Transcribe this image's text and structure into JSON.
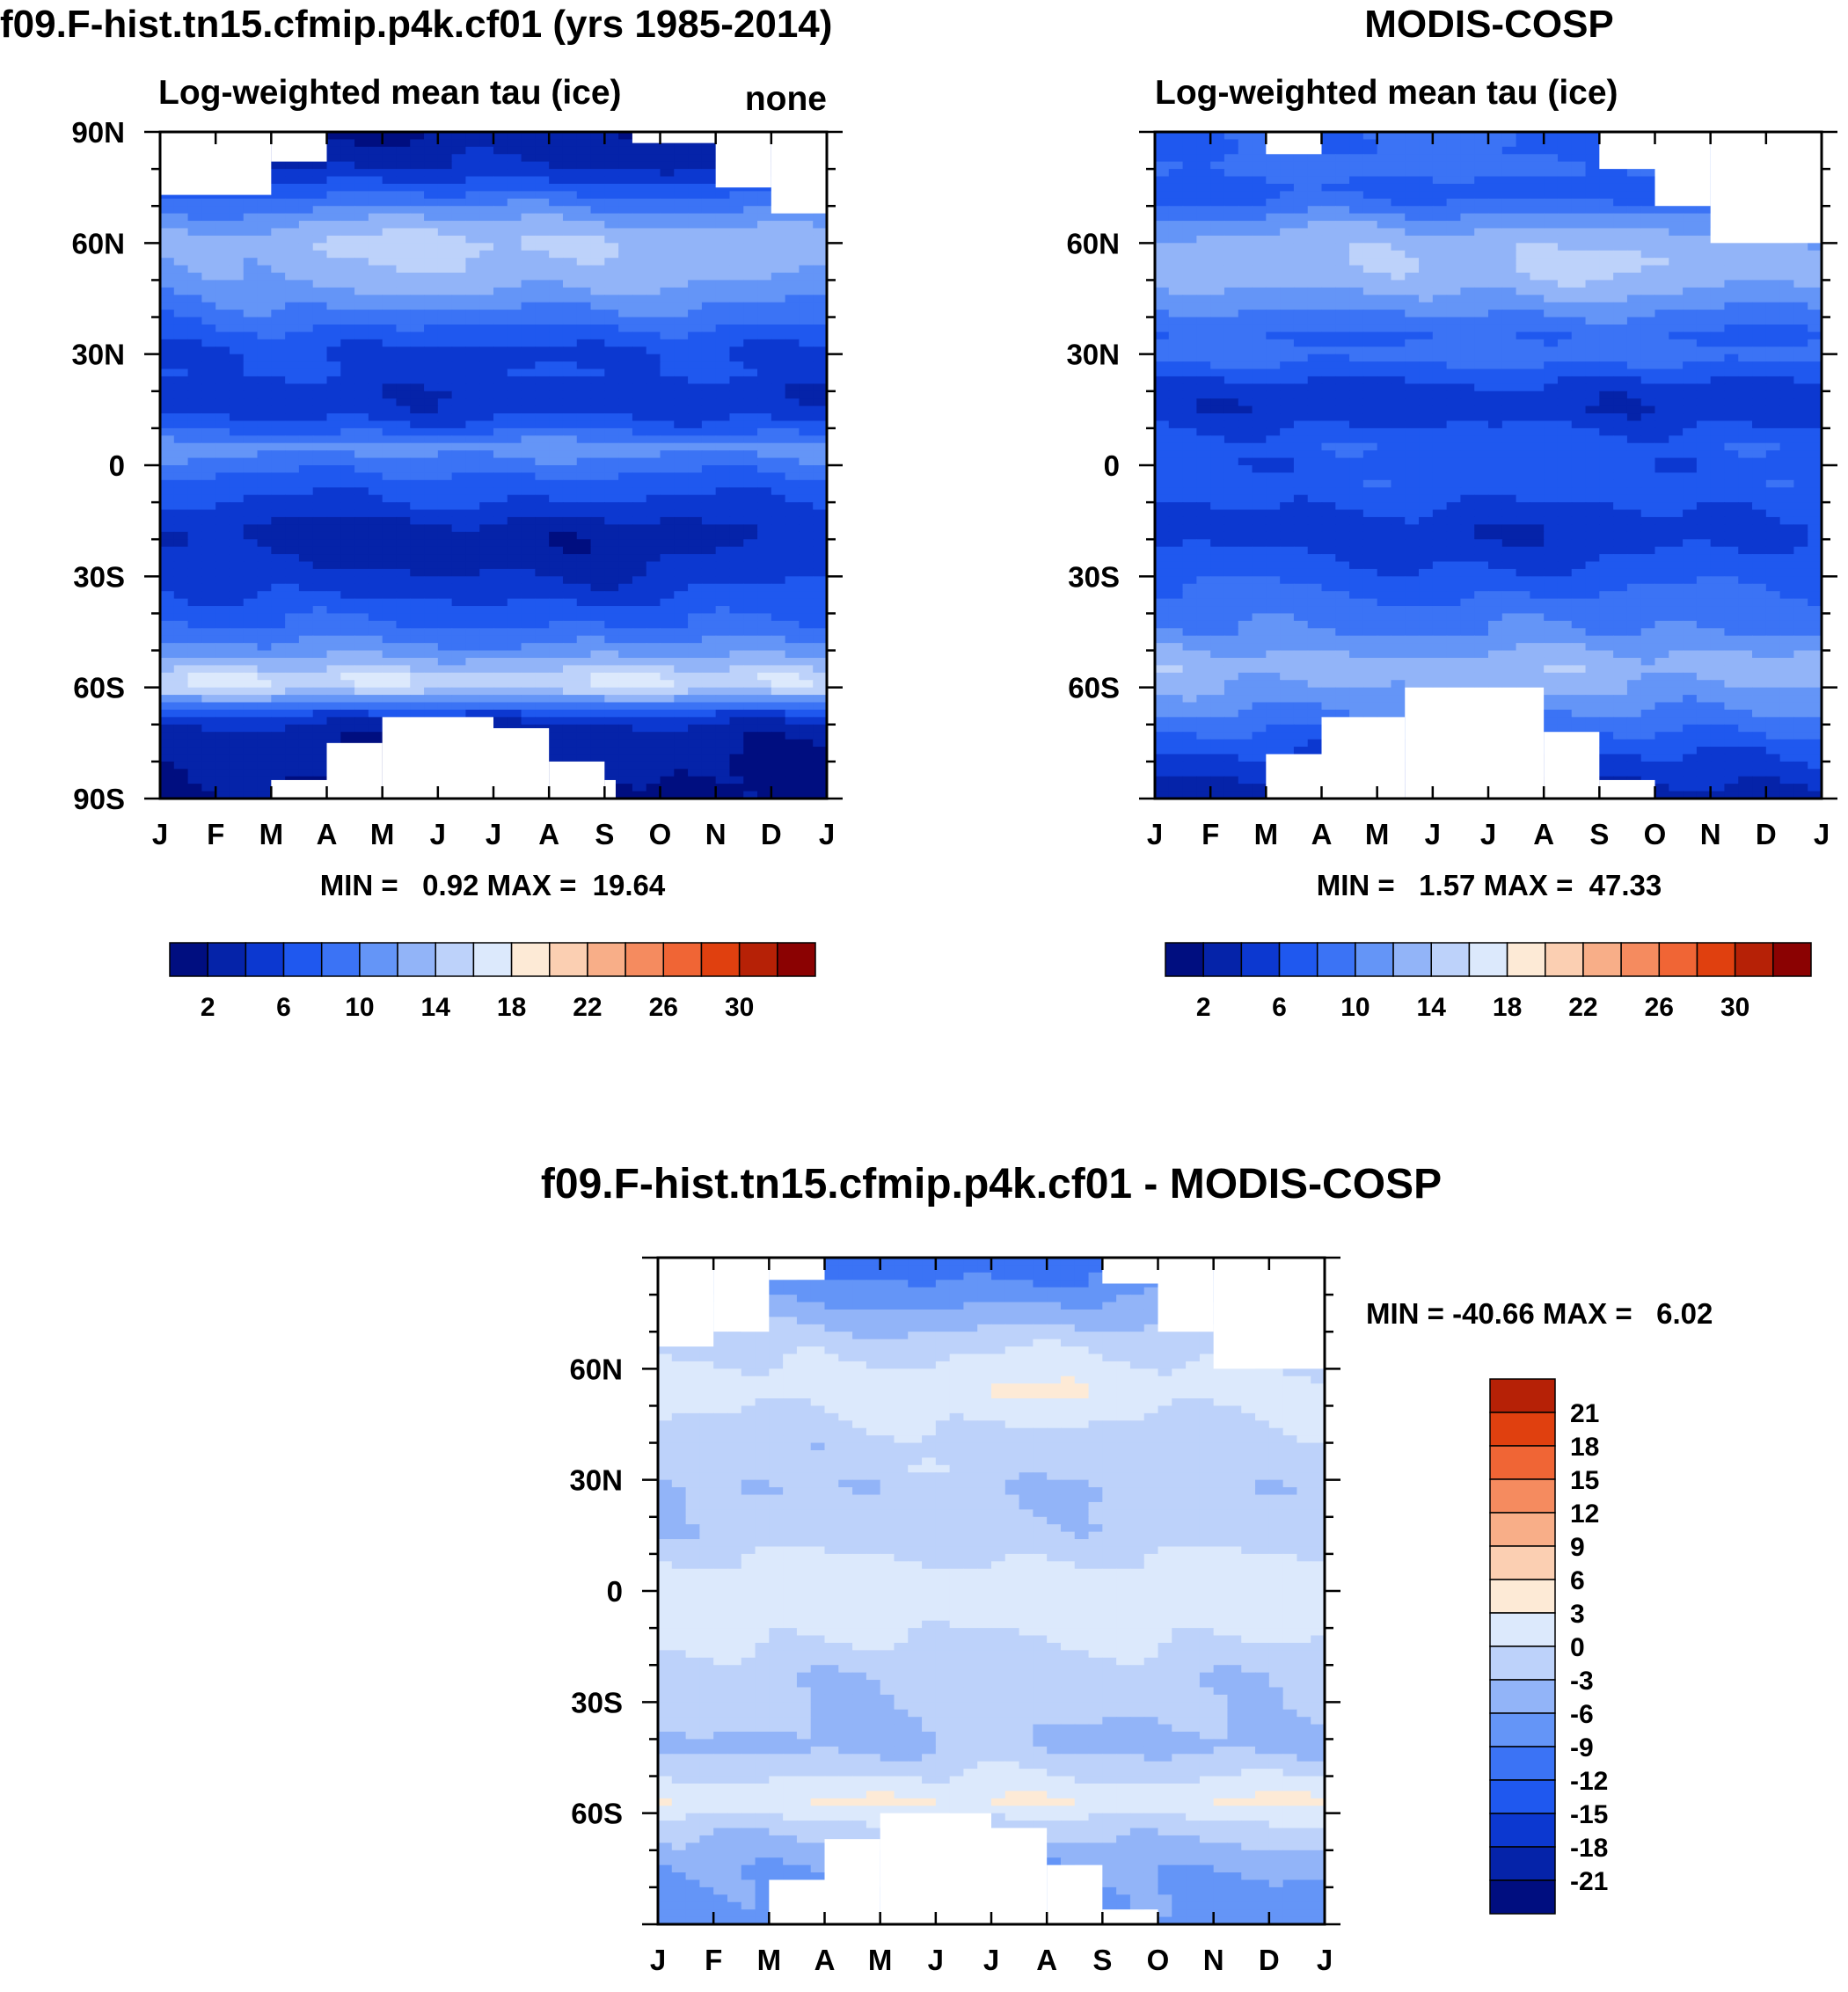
{
  "chart_data": [
    {
      "type": "heatmap",
      "panel": "model",
      "title": "f09.F-hist.tn15.cfmip.p4k.cf01 (yrs 1985-2014)",
      "subtitle": "Log-weighted mean tau (ice)",
      "right_label": "none",
      "x_ticks": [
        "J",
        "F",
        "M",
        "A",
        "M",
        "J",
        "J",
        "A",
        "S",
        "O",
        "N",
        "D",
        "J"
      ],
      "y_ticks": [
        "90N",
        "60N",
        "30N",
        "0",
        "30S",
        "60S",
        "90S"
      ],
      "ylim": [
        -90,
        90
      ],
      "stats": "MIN =   0.92 MAX =  19.64",
      "colorbar": {
        "orientation": "horizontal",
        "levels": [
          0,
          2,
          4,
          6,
          8,
          10,
          12,
          14,
          16,
          18,
          20,
          22,
          24,
          26,
          28,
          30,
          32
        ],
        "tick_labels": [
          "2",
          "6",
          "10",
          "14",
          "18",
          "22",
          "26",
          "30"
        ],
        "colors": [
          "#000e80",
          "#0523a9",
          "#0c38d0",
          "#1f58ef",
          "#3b73f5",
          "#6495f7",
          "#92b4f8",
          "#bdd2fa",
          "#dce9fc",
          "#fdead6",
          "#fbcfb2",
          "#f8ae88",
          "#f58b5f",
          "#f06535",
          "#e0400f",
          "#b62106",
          "#8b0202"
        ]
      },
      "missing_regions": [
        {
          "months": [
            0,
            2
          ],
          "lat": [
            73,
            90
          ]
        },
        {
          "months": [
            2,
            3
          ],
          "lat": [
            82,
            90
          ]
        },
        {
          "months": [
            8.5,
            10
          ],
          "lat": [
            87,
            90
          ]
        },
        {
          "months": [
            10,
            11
          ],
          "lat": [
            75,
            90
          ]
        },
        {
          "months": [
            11,
            12
          ],
          "lat": [
            68,
            90
          ]
        },
        {
          "months": [
            2,
            3
          ],
          "lat": [
            -90,
            -85
          ]
        },
        {
          "months": [
            3,
            4
          ],
          "lat": [
            -90,
            -75
          ]
        },
        {
          "months": [
            4,
            6
          ],
          "lat": [
            -90,
            -68
          ]
        },
        {
          "months": [
            6,
            7
          ],
          "lat": [
            -90,
            -71
          ]
        },
        {
          "months": [
            7,
            8
          ],
          "lat": [
            -90,
            -80
          ]
        },
        {
          "months": [
            8,
            8.2
          ],
          "lat": [
            -90,
            -85
          ]
        }
      ],
      "profile": [
        {
          "lat": -90,
          "v": 2
        },
        {
          "lat": -80,
          "v": 2
        },
        {
          "lat": -72,
          "v": 3
        },
        {
          "lat": -68,
          "v": 5
        },
        {
          "lat": -65,
          "v": 9
        },
        {
          "lat": -61,
          "v": 14
        },
        {
          "lat": -58,
          "v": 16.5
        },
        {
          "lat": -55,
          "v": 14
        },
        {
          "lat": -52,
          "v": 12
        },
        {
          "lat": -48,
          "v": 10
        },
        {
          "lat": -43,
          "v": 8
        },
        {
          "lat": -38,
          "v": 7
        },
        {
          "lat": -30,
          "v": 6
        },
        {
          "lat": -25,
          "v": 5.5
        },
        {
          "lat": -18,
          "v": 4.5
        },
        {
          "lat": -10,
          "v": 6
        },
        {
          "lat": -5,
          "v": 7
        },
        {
          "lat": 0,
          "v": 9
        },
        {
          "lat": 5,
          "v": 11
        },
        {
          "lat": 10,
          "v": 7
        },
        {
          "lat": 15,
          "v": 5
        },
        {
          "lat": 20,
          "v": 4.5
        },
        {
          "lat": 25,
          "v": 6
        },
        {
          "lat": 30,
          "v": 5.5
        },
        {
          "lat": 35,
          "v": 7
        },
        {
          "lat": 40,
          "v": 8.5
        },
        {
          "lat": 45,
          "v": 9.5
        },
        {
          "lat": 50,
          "v": 11
        },
        {
          "lat": 55,
          "v": 11.5
        },
        {
          "lat": 60,
          "v": 12.5
        },
        {
          "lat": 65,
          "v": 11
        },
        {
          "lat": 70,
          "v": 9
        },
        {
          "lat": 75,
          "v": 7
        },
        {
          "lat": 80,
          "v": 4
        },
        {
          "lat": 85,
          "v": 3
        },
        {
          "lat": 90,
          "v": 2
        }
      ],
      "seasonal": {
        "amp": 2.5,
        "lat_min": 35,
        "lat_max": 75,
        "neg_amp": 2.5,
        "neg_lat_min": -40,
        "neg_lat_max": -10
      }
    },
    {
      "type": "heatmap",
      "panel": "obs",
      "title": "MODIS-COSP",
      "subtitle": "Log-weighted mean tau (ice)",
      "x_ticks": [
        "J",
        "F",
        "M",
        "A",
        "M",
        "J",
        "J",
        "A",
        "S",
        "O",
        "N",
        "D",
        "J"
      ],
      "y_ticks": [
        "60N",
        "30N",
        "0",
        "30S",
        "60S"
      ],
      "ylim": [
        -90,
        90
      ],
      "stats": "MIN =   1.57 MAX =  47.33",
      "colorbar": {
        "orientation": "horizontal",
        "levels": [
          0,
          2,
          4,
          6,
          8,
          10,
          12,
          14,
          16,
          18,
          20,
          22,
          24,
          26,
          28,
          30,
          32
        ],
        "tick_labels": [
          "2",
          "6",
          "10",
          "14",
          "18",
          "22",
          "26",
          "30"
        ],
        "colors": [
          "#000e80",
          "#0523a9",
          "#0c38d0",
          "#1f58ef",
          "#3b73f5",
          "#6495f7",
          "#92b4f8",
          "#bdd2fa",
          "#dce9fc",
          "#fdead6",
          "#fbcfb2",
          "#f8ae88",
          "#f58b5f",
          "#f06535",
          "#e0400f",
          "#b62106",
          "#8b0202"
        ]
      },
      "missing_regions": [
        {
          "months": [
            2,
            3
          ],
          "lat": [
            84,
            90
          ]
        },
        {
          "months": [
            8,
            9
          ],
          "lat": [
            80,
            90
          ]
        },
        {
          "months": [
            9,
            10
          ],
          "lat": [
            70,
            90
          ]
        },
        {
          "months": [
            10,
            12
          ],
          "lat": [
            60,
            90
          ]
        },
        {
          "months": [
            2,
            3
          ],
          "lat": [
            -90,
            -78
          ]
        },
        {
          "months": [
            3,
            4.5
          ],
          "lat": [
            -90,
            -68
          ]
        },
        {
          "months": [
            4.5,
            7
          ],
          "lat": [
            -90,
            -60
          ]
        },
        {
          "months": [
            7,
            8
          ],
          "lat": [
            -90,
            -72
          ]
        },
        {
          "months": [
            8,
            9
          ],
          "lat": [
            -90,
            -85
          ]
        }
      ],
      "profile": [
        {
          "lat": -90,
          "v": 3
        },
        {
          "lat": -82,
          "v": 5
        },
        {
          "lat": -75,
          "v": 7
        },
        {
          "lat": -70,
          "v": 9
        },
        {
          "lat": -65,
          "v": 10.5
        },
        {
          "lat": -60,
          "v": 12
        },
        {
          "lat": -55,
          "v": 13
        },
        {
          "lat": -50,
          "v": 12
        },
        {
          "lat": -45,
          "v": 10
        },
        {
          "lat": -38,
          "v": 9
        },
        {
          "lat": -30,
          "v": 8
        },
        {
          "lat": -25,
          "v": 7
        },
        {
          "lat": -18,
          "v": 5.5
        },
        {
          "lat": -12,
          "v": 6
        },
        {
          "lat": -5,
          "v": 7
        },
        {
          "lat": 0,
          "v": 6.5
        },
        {
          "lat": 5,
          "v": 7.5
        },
        {
          "lat": 10,
          "v": 6
        },
        {
          "lat": 15,
          "v": 4.5
        },
        {
          "lat": 20,
          "v": 5
        },
        {
          "lat": 25,
          "v": 7
        },
        {
          "lat": 30,
          "v": 9
        },
        {
          "lat": 35,
          "v": 8
        },
        {
          "lat": 40,
          "v": 9
        },
        {
          "lat": 45,
          "v": 10.5
        },
        {
          "lat": 50,
          "v": 12
        },
        {
          "lat": 55,
          "v": 12.5
        },
        {
          "lat": 60,
          "v": 12
        },
        {
          "lat": 65,
          "v": 10.5
        },
        {
          "lat": 70,
          "v": 8
        },
        {
          "lat": 75,
          "v": 7
        },
        {
          "lat": 80,
          "v": 9
        },
        {
          "lat": 85,
          "v": 8
        },
        {
          "lat": 90,
          "v": 8
        }
      ],
      "seasonal": {
        "amp": 1.8,
        "lat_min": 35,
        "lat_max": 75,
        "neg_amp": 1.5,
        "neg_lat_min": -40,
        "neg_lat_max": -10
      }
    },
    {
      "type": "heatmap",
      "panel": "difference",
      "title": "f09.F-hist.tn15.cfmip.p4k.cf01 - MODIS-COSP",
      "x_ticks": [
        "J",
        "F",
        "M",
        "A",
        "M",
        "J",
        "J",
        "A",
        "S",
        "O",
        "N",
        "D",
        "J"
      ],
      "y_ticks": [
        "60N",
        "30N",
        "0",
        "30S",
        "60S"
      ],
      "ylim": [
        -90,
        90
      ],
      "stats": "MIN = -40.66 MAX =   6.02",
      "colorbar": {
        "orientation": "vertical",
        "levels": [
          -24,
          -21,
          -18,
          -15,
          -12,
          -9,
          -6,
          -3,
          0,
          3,
          6,
          9,
          12,
          15,
          18,
          21,
          24
        ],
        "tick_labels": [
          "21",
          "18",
          "15",
          "12",
          "9",
          "6",
          "3",
          "0",
          "-3",
          "-6",
          "-9",
          "-12",
          "-15",
          "-18",
          "-21"
        ],
        "colors": [
          "#000e80",
          "#0523a9",
          "#0c38d0",
          "#1f58ef",
          "#3b73f5",
          "#6495f7",
          "#92b4f8",
          "#bdd2fa",
          "#dce9fc",
          "#fdead6",
          "#fbcfb2",
          "#f8ae88",
          "#f58b5f",
          "#f06535",
          "#e0400f",
          "#b62106"
        ]
      },
      "missing_regions": [
        {
          "months": [
            0,
            1
          ],
          "lat": [
            66,
            90
          ]
        },
        {
          "months": [
            1,
            2
          ],
          "lat": [
            70,
            90
          ]
        },
        {
          "months": [
            2,
            3
          ],
          "lat": [
            84,
            90
          ]
        },
        {
          "months": [
            8,
            9
          ],
          "lat": [
            83,
            90
          ]
        },
        {
          "months": [
            9,
            10
          ],
          "lat": [
            70,
            90
          ]
        },
        {
          "months": [
            10,
            12
          ],
          "lat": [
            60,
            90
          ]
        },
        {
          "months": [
            2,
            3
          ],
          "lat": [
            -90,
            -78
          ]
        },
        {
          "months": [
            3,
            4
          ],
          "lat": [
            -90,
            -67
          ]
        },
        {
          "months": [
            4,
            6
          ],
          "lat": [
            -90,
            -60
          ]
        },
        {
          "months": [
            6,
            7
          ],
          "lat": [
            -90,
            -64
          ]
        },
        {
          "months": [
            7,
            8
          ],
          "lat": [
            -90,
            -74
          ]
        },
        {
          "months": [
            8,
            9
          ],
          "lat": [
            -90,
            -86
          ]
        }
      ],
      "profile": [
        {
          "lat": -90,
          "v": -8
        },
        {
          "lat": -82,
          "v": -7
        },
        {
          "lat": -75,
          "v": -6
        },
        {
          "lat": -70,
          "v": -4
        },
        {
          "lat": -65,
          "v": -2
        },
        {
          "lat": -60,
          "v": 1
        },
        {
          "lat": -57,
          "v": 3
        },
        {
          "lat": -52,
          "v": 1
        },
        {
          "lat": -47,
          "v": -1.5
        },
        {
          "lat": -42,
          "v": -3.5
        },
        {
          "lat": -36,
          "v": -2.5
        },
        {
          "lat": -30,
          "v": -1.5
        },
        {
          "lat": -24,
          "v": -2
        },
        {
          "lat": -18,
          "v": -1.2
        },
        {
          "lat": -12,
          "v": 0.5
        },
        {
          "lat": -6,
          "v": 1.2
        },
        {
          "lat": 0,
          "v": 1.5
        },
        {
          "lat": 5,
          "v": 1.2
        },
        {
          "lat": 10,
          "v": -0.5
        },
        {
          "lat": 15,
          "v": -1.5
        },
        {
          "lat": 22,
          "v": -2
        },
        {
          "lat": 28,
          "v": -3
        },
        {
          "lat": 33,
          "v": -1.5
        },
        {
          "lat": 38,
          "v": -2
        },
        {
          "lat": 43,
          "v": -1
        },
        {
          "lat": 48,
          "v": -0.5
        },
        {
          "lat": 53,
          "v": 1
        },
        {
          "lat": 58,
          "v": 0.5
        },
        {
          "lat": 63,
          "v": -1
        },
        {
          "lat": 68,
          "v": -2
        },
        {
          "lat": 73,
          "v": -4
        },
        {
          "lat": 78,
          "v": -6
        },
        {
          "lat": 84,
          "v": -9
        },
        {
          "lat": 90,
          "v": -10
        }
      ],
      "seasonal": {
        "amp": 1.5,
        "lat_min": 40,
        "lat_max": 72,
        "neg_amp": 1.0,
        "neg_lat_min": -40,
        "neg_lat_max": -20
      }
    }
  ]
}
